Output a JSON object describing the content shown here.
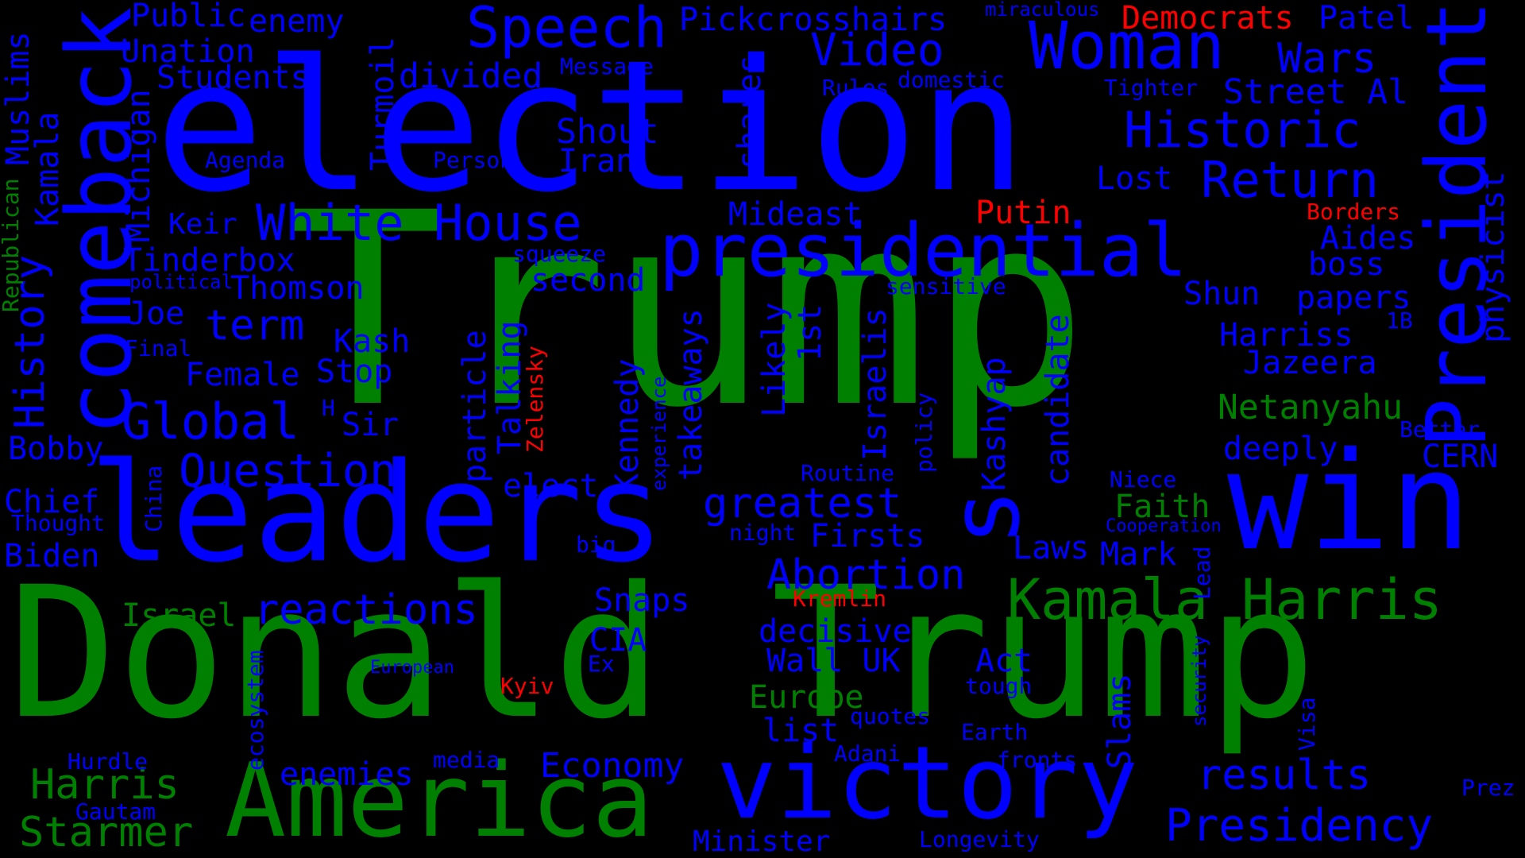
{
  "colors": {
    "blue": "#0000ff",
    "green": "#008000",
    "red": "#ff0000",
    "background": "#000000"
  },
  "words": {
    "trump": "Trump",
    "donald_trump": "Donald Trump",
    "election": "election",
    "leaders": "leaders",
    "america": "America",
    "victory": "victory",
    "win": "win",
    "presidential": "presidential",
    "comeback": "comeback",
    "president": "President",
    "woman": "Woman",
    "speech": "Speech",
    "video": "Video",
    "historic": "Historic",
    "return": "Return",
    "white_house": "White House",
    "global": "Global",
    "question": "Question",
    "reactions": "reactions",
    "kamala_harris": "Kamala Harris",
    "presidency": "Presidency",
    "results": "results",
    "harris": "Harris",
    "starmer": "Starmer",
    "economy": "Economy",
    "abortion": "Abortion",
    "greatest": "greatest",
    "netanyahu": "Netanyahu",
    "europe": "Europe",
    "s": "s",
    "wars": "Wars",
    "street_al": "Street Al",
    "democrats": "Democrats",
    "patel": "Patel",
    "pickcrosshairs": "Pickcrosshairs",
    "public": "Public",
    "enemy": "enemy",
    "unation": "Unation",
    "students": "Students",
    "divided": "divided",
    "shout": "Shout",
    "iran": "Iran",
    "tinderbox": "Tinderbox",
    "thomson": "Thomson",
    "keir": "Keir",
    "term": "term",
    "joe": "Joe",
    "kash": "Kash",
    "female": "Female",
    "stop": "Stop",
    "sir": "Sir",
    "bobby": "Bobby",
    "chief": "Chief",
    "biden": "Biden",
    "israel": "Israel",
    "mideast": "Mideast",
    "putin": "Putin",
    "lost": "Lost",
    "aides": "Aides",
    "boss": "boss",
    "shun": "Shun",
    "papers": "papers",
    "harriss": "Harriss",
    "jazeera": "Jazeera",
    "deeply": "deeply",
    "cern": "CERN",
    "faith": "Faith",
    "laws": "Laws",
    "mark": "Mark",
    "firsts": "Firsts",
    "elect": "elect",
    "decisive": "decisive",
    "wall_uk": "Wall UK",
    "act": "Act",
    "list": "list",
    "minister": "Minister",
    "snaps": "Snaps",
    "cia": "CIA",
    "second": "second",
    "enemies": "enemies",
    "hurdle": "Hurdle",
    "gautam": "Gautam",
    "agenda": "Agenda",
    "person": "Person",
    "message": "Message",
    "miraculous": "miraculous",
    "domestic": "domestic",
    "rules": "Rules",
    "tighter": "Tighter",
    "borders": "Borders",
    "squeeze": "squeeze",
    "political": "political",
    "final": "Final",
    "h": "H",
    "thought": "Thought",
    "sensitive": "sensitive",
    "routine": "Routine",
    "night": "night",
    "big": "big",
    "kremlin": "Kremlin",
    "niece": "Niece",
    "cooperation": "Cooperation",
    "better": "Better",
    "ex": "Ex",
    "european": "European",
    "kyiv": "Kyiv",
    "quotes": "quotes",
    "tough": "tough",
    "adani": "Adani",
    "earth": "Earth",
    "fronts": "fronts",
    "media": "media",
    "longevity": "Longevity",
    "prez": "Prez",
    "1b": "1B",
    "muslims": "Muslims",
    "kamala": "Kamala",
    "history": "History",
    "republican": "Republican",
    "michigan": "Michigan",
    "turmoil": "Turmoil",
    "shares": "shares",
    "physicist": "physicist",
    "particle": "particle",
    "talking": "Talking",
    "zelensky": "Zelensky",
    "kennedy": "Kennedy",
    "experience": "experience",
    "takeaways": "takeaways",
    "likely": "Likely",
    "1st": "1st",
    "israelis": "Israelis",
    "policy": "policy",
    "kashyap": "Kashyap",
    "candidate": "candidate",
    "china": "China",
    "ecosystem": "ecosystem",
    "slams": "Slams",
    "security": "security",
    "visa": "Visa",
    "lead": "Lead"
  }
}
